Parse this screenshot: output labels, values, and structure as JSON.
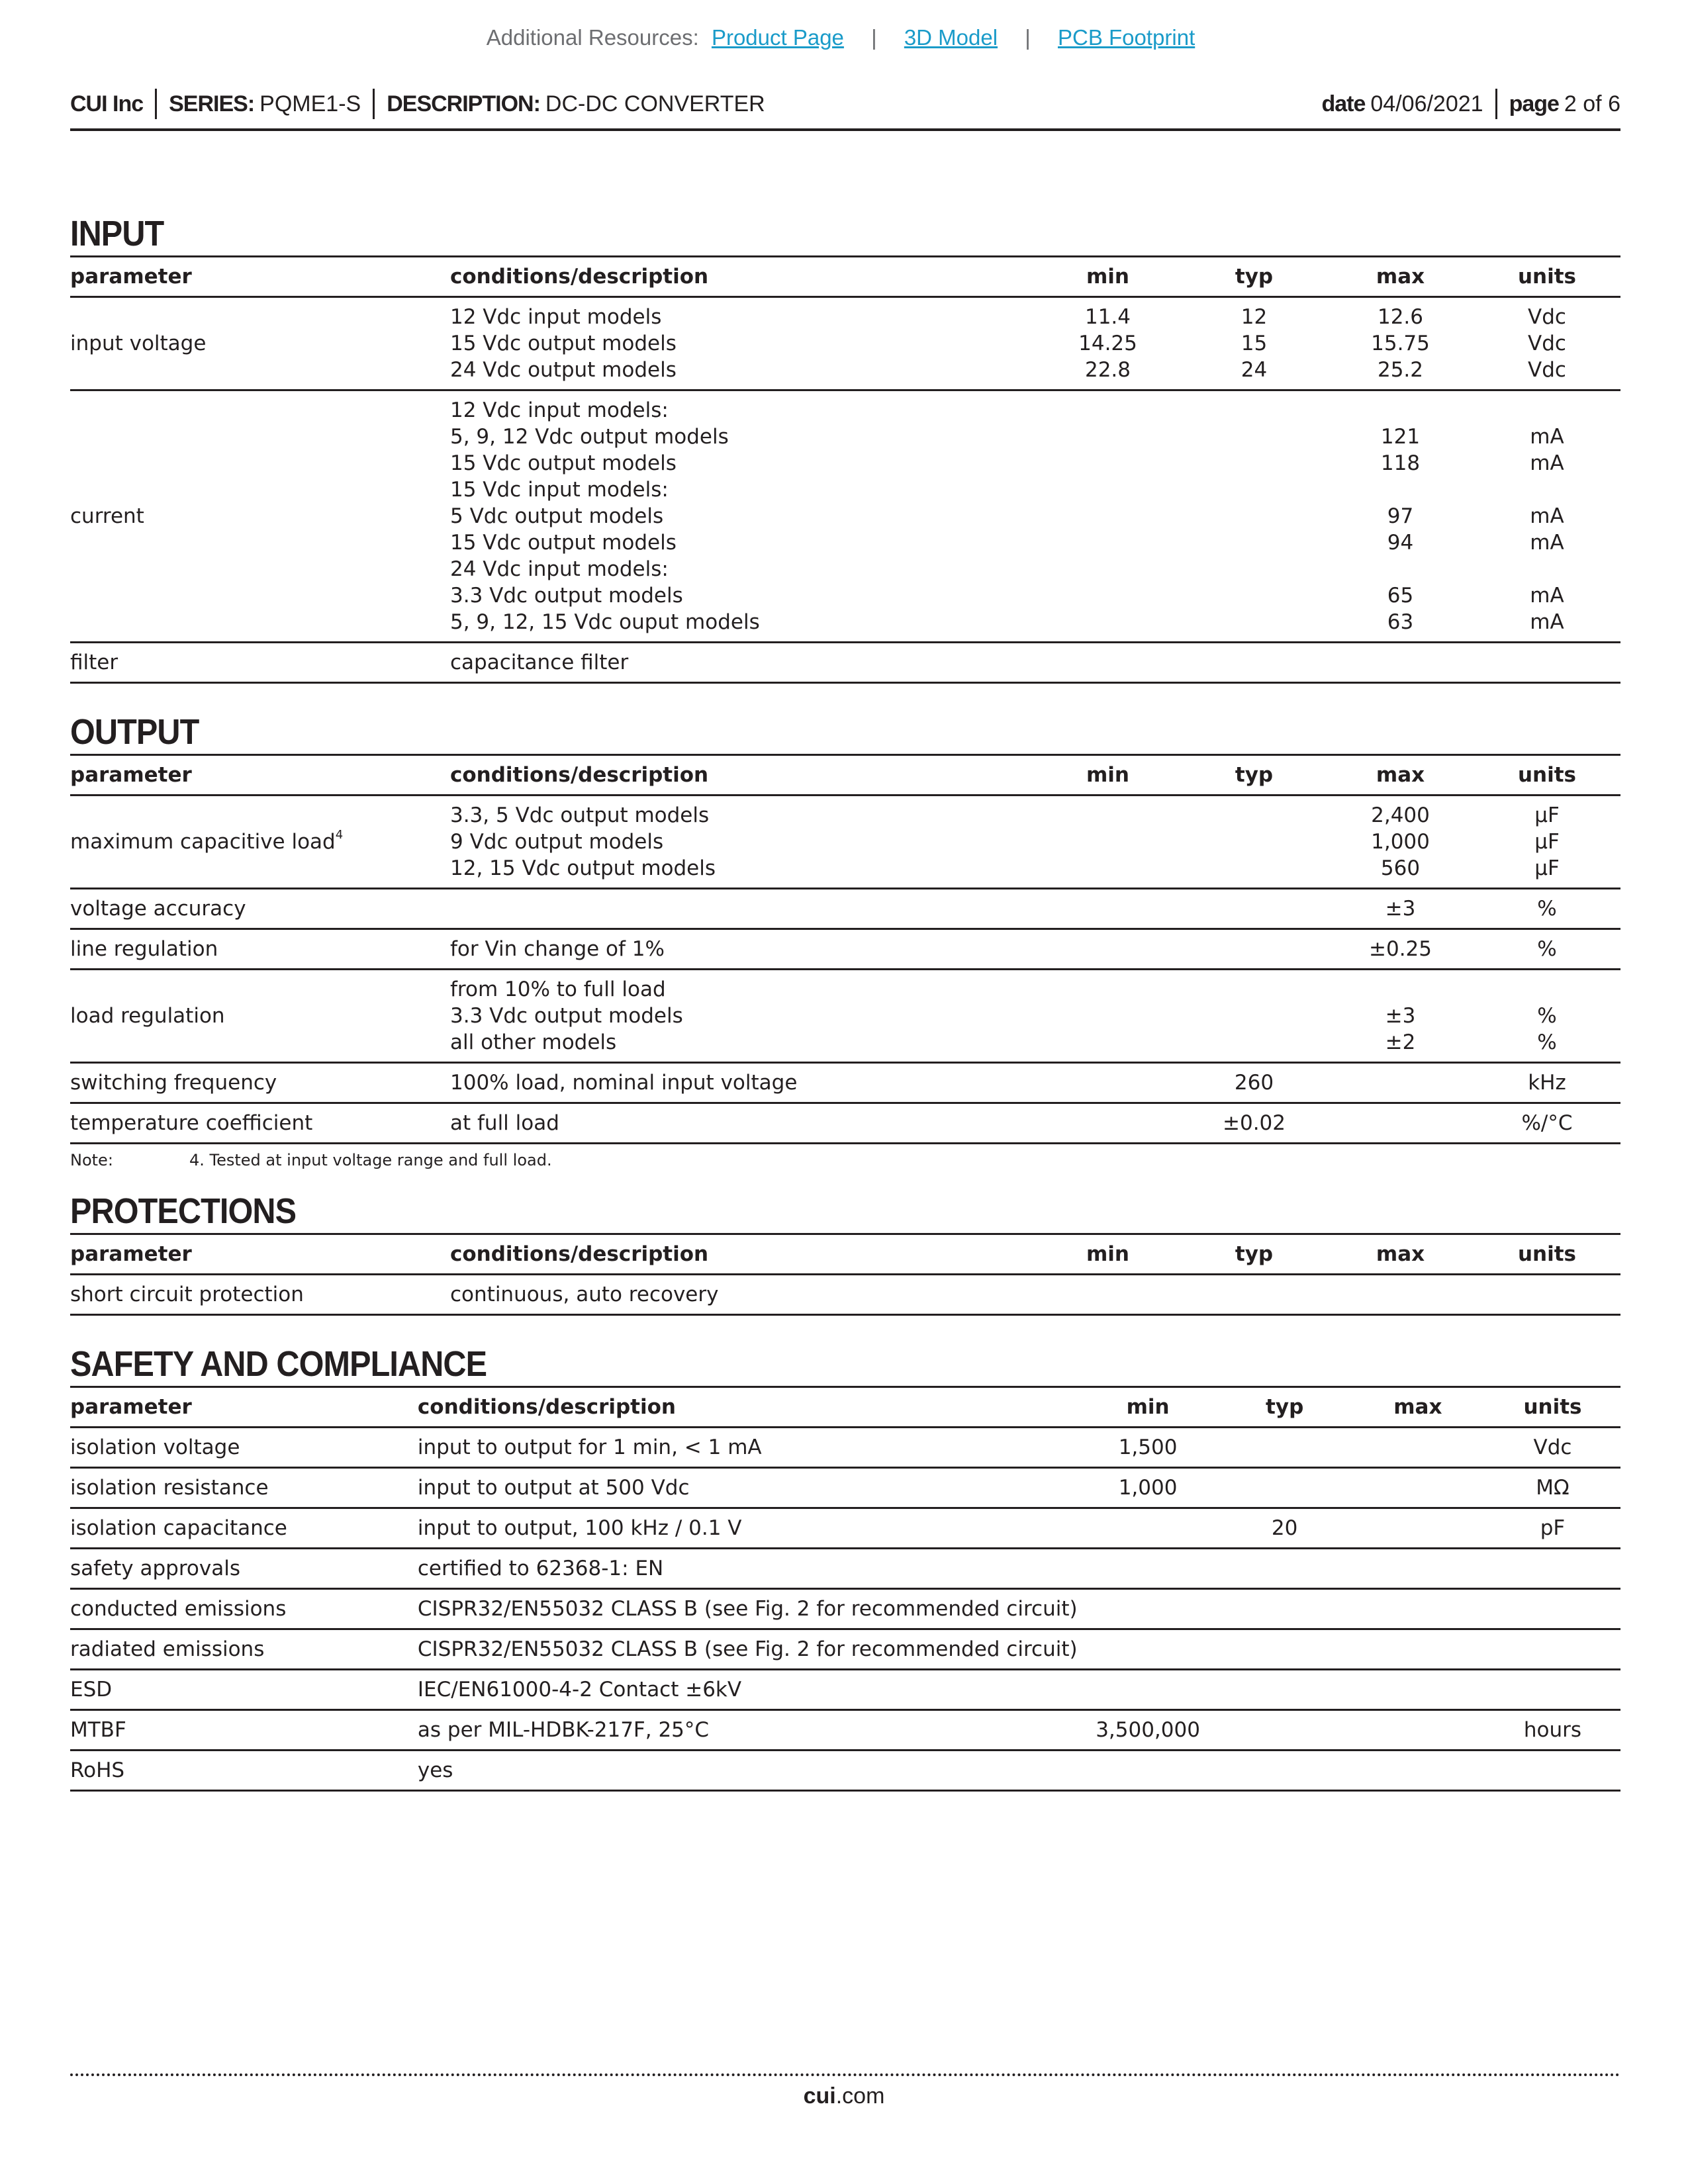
{
  "resources": {
    "label": "Additional Resources:",
    "links": [
      "Product Page",
      "3D Model",
      "PCB Footprint"
    ],
    "separator": "|",
    "link_color": "#1a9bc9"
  },
  "header": {
    "company": "CUI Inc",
    "series_label": "SERIES:",
    "series": "PQME1-S",
    "description_label": "DESCRIPTION:",
    "description": "DC-DC CONVERTER",
    "date_label": "date",
    "date": "04/06/2021",
    "page_label": "page",
    "page": "2 of 6"
  },
  "columns": [
    "parameter",
    "conditions/description",
    "min",
    "typ",
    "max",
    "units"
  ],
  "sections": [
    {
      "title": "INPUT",
      "rows": [
        {
          "param": "input voltage",
          "cond": [
            "12 Vdc input models",
            "15 Vdc output models",
            "24 Vdc output models"
          ],
          "min": [
            "11.4",
            "14.25",
            "22.8"
          ],
          "typ": [
            "12",
            "15",
            "24"
          ],
          "max": [
            "12.6",
            "15.75",
            "25.2"
          ],
          "units": [
            "Vdc",
            "Vdc",
            "Vdc"
          ]
        },
        {
          "param": "current",
          "cond": [
            "12 Vdc input models:",
            "5, 9, 12 Vdc output models",
            "15 Vdc output models",
            "15 Vdc input models:",
            "5 Vdc output models",
            "15 Vdc output models",
            "24 Vdc input models:",
            "3.3 Vdc output models",
            "5, 9, 12, 15 Vdc ouput models"
          ],
          "min": [],
          "typ": [],
          "max": [
            "",
            "121",
            "118",
            "",
            "97",
            "94",
            "",
            "65",
            "63"
          ],
          "units": [
            "",
            "mA",
            "mA",
            "",
            "mA",
            "mA",
            "",
            "mA",
            "mA"
          ]
        },
        {
          "param": "filter",
          "cond": [
            "capacitance filter"
          ],
          "min": [],
          "typ": [],
          "max": [],
          "units": []
        }
      ]
    },
    {
      "title": "OUTPUT",
      "rows": [
        {
          "param": "maximum capacitive load",
          "sup": "4",
          "cond": [
            "3.3, 5 Vdc output models",
            "9 Vdc output models",
            "12, 15 Vdc output models"
          ],
          "min": [],
          "typ": [],
          "max": [
            "2,400",
            "1,000",
            "560"
          ],
          "units": [
            "µF",
            "µF",
            "µF"
          ]
        },
        {
          "param": "voltage accuracy",
          "cond": [
            ""
          ],
          "min": [],
          "typ": [],
          "max": [
            "±3"
          ],
          "units": [
            "%"
          ]
        },
        {
          "param": "line regulation",
          "cond": [
            "for Vin change of 1%"
          ],
          "min": [],
          "typ": [],
          "max": [
            "±0.25"
          ],
          "units": [
            "%"
          ]
        },
        {
          "param": "load regulation",
          "cond": [
            "from 10% to full load",
            "3.3 Vdc output models",
            "all other models"
          ],
          "min": [],
          "typ": [],
          "max": [
            "",
            "±3",
            "±2"
          ],
          "units": [
            "",
            "%",
            "%"
          ]
        },
        {
          "param": "switching frequency",
          "cond": [
            "100% load, nominal input voltage"
          ],
          "min": [],
          "typ": [
            "260"
          ],
          "max": [],
          "units": [
            "kHz"
          ]
        },
        {
          "param": "temperature coefficient",
          "cond": [
            "at full load"
          ],
          "min": [],
          "typ": [
            "±0.02"
          ],
          "max": [],
          "units": [
            "%/°C"
          ]
        }
      ],
      "note": {
        "label": "Note:",
        "text": "4. Tested at input voltage range and full load."
      }
    },
    {
      "title": "PROTECTIONS",
      "rows": [
        {
          "param": "short circuit protection",
          "cond": [
            "continuous, auto recovery"
          ],
          "min": [],
          "typ": [],
          "max": [],
          "units": []
        }
      ]
    },
    {
      "title": "SAFETY AND COMPLIANCE",
      "rows": [
        {
          "param": "isolation voltage",
          "cond": [
            "input to output for 1 min, < 1 mA"
          ],
          "min": [
            "1,500"
          ],
          "typ": [],
          "max": [],
          "units": [
            "Vdc"
          ]
        },
        {
          "param": "isolation resistance",
          "cond": [
            "input to output at 500 Vdc"
          ],
          "min": [
            "1,000"
          ],
          "typ": [],
          "max": [],
          "units": [
            "MΩ"
          ]
        },
        {
          "param": "isolation capacitance",
          "cond": [
            "input to output, 100 kHz / 0.1 V"
          ],
          "min": [],
          "typ": [
            "20"
          ],
          "max": [],
          "units": [
            "pF"
          ]
        },
        {
          "param": "safety approvals",
          "cond": [
            "certified to 62368-1: EN"
          ],
          "min": [],
          "typ": [],
          "max": [],
          "units": []
        },
        {
          "param": "conducted emissions",
          "cond": [
            "CISPR32/EN55032 CLASS B (see Fig. 2 for recommended circuit)"
          ],
          "min": [],
          "typ": [],
          "max": [],
          "units": []
        },
        {
          "param": "radiated emissions",
          "cond": [
            "CISPR32/EN55032 CLASS B (see Fig. 2 for recommended circuit)"
          ],
          "min": [],
          "typ": [],
          "max": [],
          "units": []
        },
        {
          "param": "ESD",
          "cond": [
            "IEC/EN61000-4-2 Contact ±6kV"
          ],
          "min": [],
          "typ": [],
          "max": [],
          "units": []
        },
        {
          "param": "MTBF",
          "cond": [
            "as per MIL-HDBK-217F, 25°C"
          ],
          "min": [
            "3,500,000"
          ],
          "typ": [],
          "max": [],
          "units": [
            "hours"
          ]
        },
        {
          "param": "RoHS",
          "cond": [
            "yes"
          ],
          "min": [],
          "typ": [],
          "max": [],
          "units": []
        }
      ]
    }
  ],
  "footer": {
    "brand": "cui",
    "domain": ".com"
  }
}
